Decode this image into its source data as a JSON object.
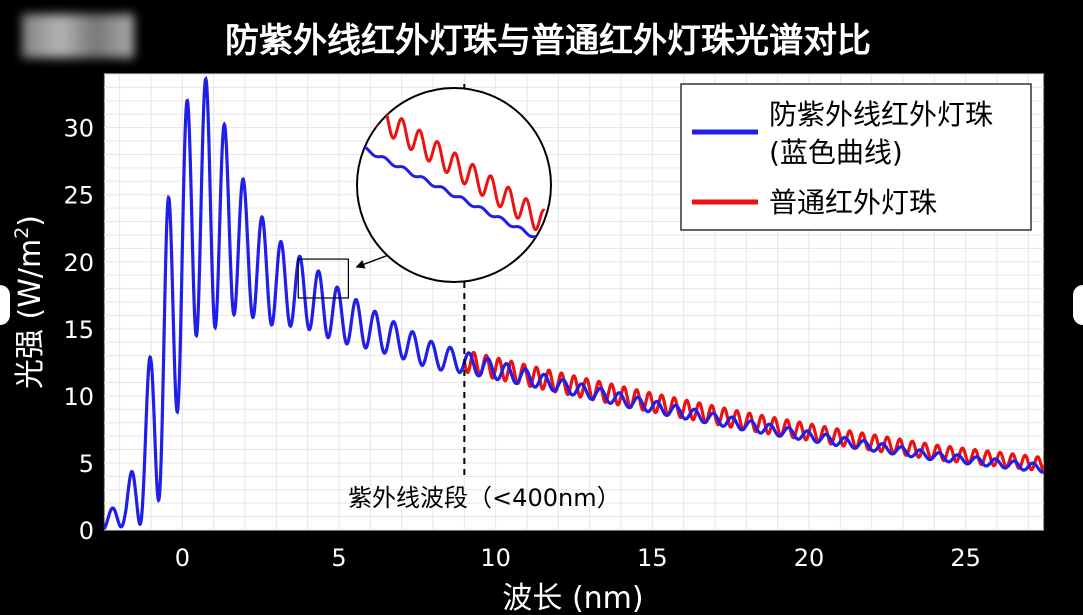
{
  "chart_data": {
    "type": "line",
    "title": "防紫外线红外灯珠与普通红外灯珠光谱对比",
    "xlabel": "波长 (nm)",
    "ylabel_main": "光强 (W/m",
    "ylabel_sup": "2",
    "ylabel_close": ")",
    "xlim": [
      -2.5,
      27.5
    ],
    "ylim": [
      0,
      34
    ],
    "xticks": [
      0,
      5,
      10,
      15,
      20,
      25
    ],
    "yticks": [
      0,
      5,
      10,
      15,
      20,
      25,
      30
    ],
    "grid": true,
    "legend_position": "top-right",
    "series": [
      {
        "name": "防紫外线红外灯珠 (蓝色曲线)",
        "legend_line1": "防紫外线红外灯珠",
        "legend_line2": "(蓝色曲线)",
        "color": "#1f1fe8",
        "x": [
          -2.5,
          -1.8,
          -1.5,
          -1,
          -0.5,
          0,
          0.3,
          0.6,
          1,
          1.5,
          2,
          2.5,
          3,
          3.5,
          4,
          5,
          6,
          7,
          8,
          9,
          12,
          15,
          18,
          21,
          24,
          27.5
        ],
        "mid": [
          0.5,
          1.5,
          3,
          7,
          14,
          21,
          23.5,
          24.5,
          24,
          22.5,
          21,
          19.5,
          18.5,
          18,
          17.5,
          16,
          15,
          14,
          13,
          12.5,
          10.8,
          9.2,
          7.8,
          6.6,
          5.5,
          4.6
        ],
        "amp": [
          0.5,
          1.2,
          2.6,
          6.5,
          10,
          10,
          9.5,
          9.5,
          9,
          6.5,
          4.8,
          4,
          3.3,
          2.8,
          2.5,
          2,
          1.5,
          1.2,
          1,
          0.8,
          0.5,
          0.45,
          0.4,
          0.35,
          0.3,
          0.3
        ],
        "period": 0.6,
        "stop_x": 11.5
      },
      {
        "name": "普通红外灯珠",
        "color": "#ee1111",
        "x": [
          9,
          12,
          15,
          18,
          21,
          24,
          27.5
        ],
        "mid": [
          12.6,
          11,
          9.5,
          8.1,
          6.9,
          5.8,
          4.9
        ],
        "amp": [
          0.8,
          0.75,
          0.7,
          0.65,
          0.6,
          0.55,
          0.5
        ],
        "period": 0.4
      }
    ],
    "annotations": {
      "uv_cutoff_x": 9,
      "uv_label": "紫外线波段（<400nm）",
      "zoom_box": {
        "x0": 3.7,
        "x1": 5.3,
        "y0": 17.3,
        "y1": 20.2
      }
    }
  }
}
